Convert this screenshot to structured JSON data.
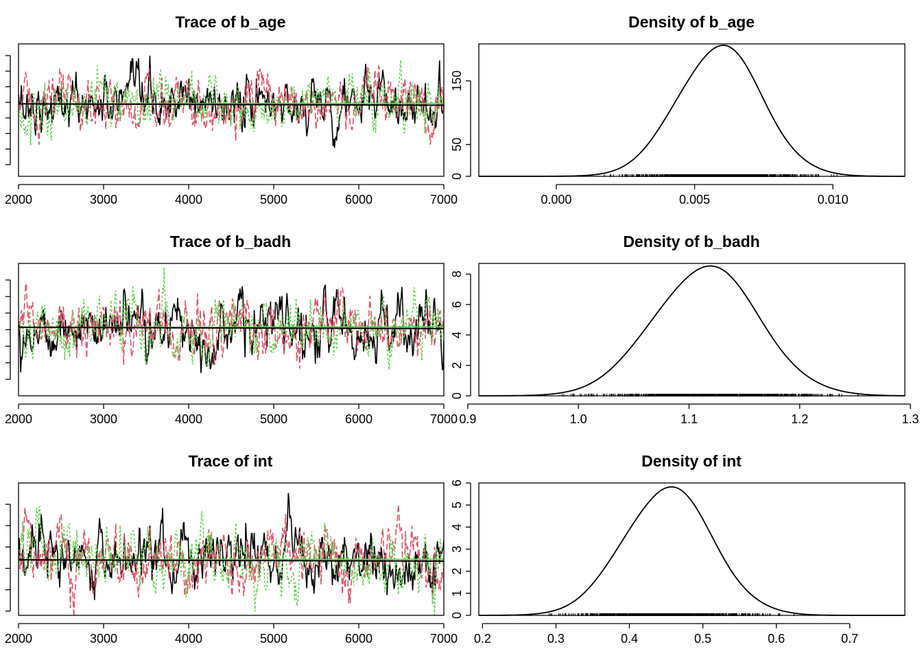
{
  "colors": {
    "chain1": "#000000",
    "chain2": "#DF536B",
    "chain3": "#61D04F",
    "axis": "#000000",
    "zero": "#D9D9D9"
  },
  "chart_data": [
    {
      "type": "line",
      "title": "Trace of b_age",
      "xlim": [
        2000,
        7000
      ],
      "ylim": [
        -0.0035,
        0.0135
      ],
      "xticks": [
        "2000",
        "3000",
        "4000",
        "5000",
        "6000",
        "7000"
      ],
      "yticks_unlabeled": [
        -0.002,
        0.0,
        0.002,
        0.004,
        0.006,
        0.008,
        0.01,
        0.012
      ],
      "chains": 3,
      "series_mean": 0.0058,
      "series_sd": 0.0018,
      "grid": false
    },
    {
      "type": "line",
      "title": "Density of b_age",
      "xlim": [
        -0.0028,
        0.0126
      ],
      "ylim": [
        0,
        208
      ],
      "xticks": [
        "0.000",
        "0.005",
        "0.010"
      ],
      "xtick_values": [
        0.0,
        0.005,
        0.01
      ],
      "yticks": [
        "0",
        "50",
        "150"
      ],
      "ytick_values": [
        0,
        50,
        150
      ],
      "peak_x": 0.0059,
      "peak_y": 205,
      "rug_range": [
        0.0011,
        0.0115
      ]
    },
    {
      "type": "line",
      "title": "Trace of b_badh",
      "xlim": [
        2000,
        7000
      ],
      "ylim": [
        0.9,
        1.3
      ],
      "xticks": [
        "2000",
        "3000",
        "4000",
        "5000",
        "6000",
        "7000"
      ],
      "yticks_unlabeled": [
        0.95,
        1.0,
        1.05,
        1.1,
        1.15,
        1.2,
        1.25
      ],
      "chains": 3,
      "series_mean": 1.107,
      "series_sd": 0.045,
      "grid": false
    },
    {
      "type": "line",
      "title": "Density of b_badh",
      "xlim": [
        0.91,
        1.295
      ],
      "ylim": [
        0,
        8.7
      ],
      "xticks": [
        "0.9",
        "1.0",
        "1.1",
        "1.2",
        "1.3"
      ],
      "xtick_values": [
        0.9,
        1.0,
        1.1,
        1.2,
        1.3
      ],
      "yticks": [
        "0",
        "2",
        "4",
        "6",
        "8"
      ],
      "ytick_values": [
        0,
        2,
        4,
        6,
        8
      ],
      "peak_x": 1.115,
      "peak_y": 8.5,
      "rug_range": [
        0.93,
        1.255
      ]
    },
    {
      "type": "line",
      "title": "Trace of int",
      "xlim": [
        2000,
        7000
      ],
      "ylim": [
        0.18,
        0.8
      ],
      "xticks": [
        "2000",
        "3000",
        "4000",
        "5000",
        "6000",
        "7000"
      ],
      "yticks_unlabeled": [
        0.2,
        0.3,
        0.4,
        0.5,
        0.6,
        0.7
      ],
      "chains": 3,
      "series_mean": 0.44,
      "series_sd": 0.075,
      "grid": false
    },
    {
      "type": "line",
      "title": "Density of int",
      "xlim": [
        0.195,
        0.775
      ],
      "ylim": [
        0,
        6.0
      ],
      "xticks": [
        "0.2",
        "0.3",
        "0.4",
        "0.5",
        "0.6",
        "0.7"
      ],
      "xtick_values": [
        0.2,
        0.3,
        0.4,
        0.5,
        0.6,
        0.7
      ],
      "yticks": [
        "0",
        "1",
        "2",
        "3",
        "4",
        "5",
        "6"
      ],
      "ytick_values": [
        0,
        1,
        2,
        3,
        4,
        5,
        6
      ],
      "peak_x": 0.452,
      "peak_y": 5.8,
      "rug_range": [
        0.23,
        0.64
      ]
    }
  ]
}
